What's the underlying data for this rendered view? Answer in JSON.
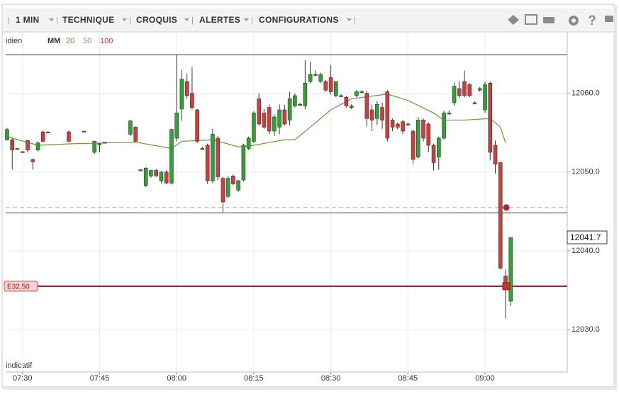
{
  "toolbar": {
    "items": [
      "1 MIN",
      "TECHNIQUE",
      "CROQUIS",
      "ALERTES",
      "CONFIGURATIONS"
    ]
  },
  "chart_data": {
    "type": "candlestick",
    "period_label": "idien",
    "indicator_legend": {
      "label": "MM",
      "periods": [
        {
          "label": "20",
          "color": "#4e9a2e"
        },
        {
          "label": "50",
          "color": "#8a8a6a"
        },
        {
          "label": "100",
          "color": "#c0392b"
        }
      ]
    },
    "footer_label": "indicatif",
    "up_color": "#35a035",
    "down_color": "#c94040",
    "x": [
      "07:27",
      "07:28",
      "07:29",
      "07:30",
      "07:31",
      "07:32",
      "07:33",
      "07:34",
      "07:35",
      "07:39",
      "07:42",
      "07:44",
      "07:45",
      "07:46",
      "07:51",
      "07:52",
      "07:53",
      "07:54",
      "07:55",
      "07:56",
      "07:57",
      "07:58",
      "07:59",
      "08:00",
      "08:01",
      "08:02",
      "08:03",
      "08:04",
      "08:05",
      "08:06",
      "08:07",
      "08:08",
      "08:09",
      "08:10",
      "08:11",
      "08:12",
      "08:13",
      "08:14",
      "08:15",
      "08:16",
      "08:17",
      "08:18",
      "08:19",
      "08:20",
      "08:21",
      "08:22",
      "08:23",
      "08:24",
      "08:25",
      "08:26",
      "08:27",
      "08:28",
      "08:29",
      "08:30",
      "08:31",
      "08:32",
      "08:33",
      "08:34",
      "08:35",
      "08:36",
      "08:37",
      "08:38",
      "08:39",
      "08:40",
      "08:41",
      "08:42",
      "08:43",
      "08:44",
      "08:45",
      "08:46",
      "08:47",
      "08:48",
      "08:49",
      "08:50",
      "08:51",
      "08:52",
      "08:53",
      "08:54",
      "08:55",
      "08:56",
      "08:57",
      "08:58",
      "08:59",
      "09:00",
      "09:01",
      "09:02",
      "09:03",
      "09:04",
      "09:05"
    ],
    "open": [
      12054.1,
      12054.1,
      12053.0,
      12052.6,
      12054.0,
      12051.6,
      12052.8,
      12055.1,
      12055.1,
      12055.1,
      12055.2,
      12052.5,
      12053.6,
      12053.8,
      12054.8,
      12055.7,
      12050.3,
      12048.3,
      12049.5,
      12050.2,
      12048.9,
      12050.0,
      12048.6,
      12054.3,
      12058.0,
      12061.5,
      12060.0,
      12057.9,
      12053.0,
      12053.4,
      12048.9,
      12054.3,
      12049.2,
      12046.9,
      12049.5,
      12047.7,
      12049.0,
      12053.0,
      12053.9,
      12059.3,
      12057.5,
      12058.2,
      12055.2,
      12055.7,
      12057.9,
      12056.6,
      12058.4,
      12058.6,
      12058.4,
      12061.5,
      12062.4,
      12061.5,
      12061.5,
      12062.0,
      12059.7,
      12059.7,
      12059.5,
      12058.4,
      12059.7,
      12060.2,
      12060.0,
      12057.9,
      12056.8,
      12058.2,
      12060.2,
      12056.6,
      12056.1,
      12056.4,
      12056.1,
      12055.2,
      12051.9,
      12056.6,
      12056.1,
      12053.4,
      12051.9,
      12054.3,
      12057.5,
      12058.8,
      12060.6,
      12061.5,
      12061.1,
      12058.8,
      12060.4,
      12057.9,
      12061.3,
      12053.4,
      12051.2,
      12036.8,
      12033.6
    ],
    "high": [
      12055.6,
      12054.3,
      12053.0,
      12052.6,
      12054.1,
      12051.7,
      12053.9,
      12055.3,
      12055.1,
      12055.3,
      12055.2,
      12054.0,
      12053.6,
      12053.8,
      12056.6,
      12055.8,
      12050.3,
      12050.6,
      12050.3,
      12050.4,
      12050.1,
      12050.2,
      12055.5,
      12064.9,
      12063.0,
      12062.5,
      12063.3,
      12058.0,
      12053.2,
      12053.6,
      12055.5,
      12054.6,
      12049.4,
      12049.5,
      12049.7,
      12049.0,
      12053.6,
      12054.5,
      12057.7,
      12060.0,
      12058.0,
      12058.6,
      12057.3,
      12058.6,
      12058.5,
      12060.2,
      12060.0,
      12058.8,
      12064.2,
      12064.0,
      12062.9,
      12062.6,
      12061.7,
      12063.6,
      12061.5,
      12059.9,
      12059.7,
      12058.6,
      12060.4,
      12060.4,
      12060.3,
      12058.6,
      12059.0,
      12058.8,
      12060.4,
      12056.8,
      12056.3,
      12056.6,
      12056.3,
      12055.4,
      12057.0,
      12056.8,
      12056.3,
      12053.6,
      12054.5,
      12057.8,
      12057.8,
      12061.3,
      12061.5,
      12062.9,
      12061.3,
      12059.0,
      12060.8,
      12061.5,
      12061.5,
      12054.0,
      12051.3,
      12037.6,
      12041.7
    ],
    "low": [
      12054.0,
      12050.3,
      12053.0,
      12052.5,
      12052.5,
      12050.3,
      12052.6,
      12053.8,
      12055.1,
      12053.8,
      12055.2,
      12052.3,
      12052.5,
      12053.8,
      12054.6,
      12053.8,
      12050.1,
      12048.1,
      12049.3,
      12049.4,
      12048.6,
      12048.5,
      12048.4,
      12053.9,
      12056.5,
      12059.3,
      12057.9,
      12053.7,
      12052.8,
      12048.5,
      12048.6,
      12049.0,
      12044.9,
      12046.7,
      12048.3,
      12047.5,
      12048.8,
      12052.8,
      12053.7,
      12055.9,
      12055.5,
      12054.8,
      12054.6,
      12054.8,
      12055.9,
      12055.9,
      12058.2,
      12058.4,
      12058.0,
      12061.3,
      12062.2,
      12061.3,
      12060.2,
      12059.8,
      12059.5,
      12059.5,
      12058.2,
      12058.0,
      12059.5,
      12060.0,
      12055.8,
      12055.2,
      12056.0,
      12055.5,
      12053.9,
      12055.2,
      12055.4,
      12054.8,
      12055.9,
      12051.0,
      12051.7,
      12053.9,
      12052.5,
      12050.2,
      12050.3,
      12054.1,
      12057.3,
      12058.4,
      12059.4,
      12059.5,
      12059.5,
      12058.6,
      12060.2,
      12057.5,
      12051.5,
      12049.8,
      12037.6,
      12031.4,
      12033.0
    ],
    "close": [
      12055.4,
      12052.8,
      12053.0,
      12052.5,
      12052.8,
      12051.3,
      12053.7,
      12053.9,
      12055.1,
      12053.9,
      12055.2,
      12053.9,
      12053.5,
      12053.8,
      12056.5,
      12053.9,
      12050.2,
      12050.5,
      12050.2,
      12049.5,
      12050.0,
      12048.6,
      12055.4,
      12057.5,
      12061.8,
      12059.7,
      12058.2,
      12053.9,
      12053.0,
      12048.9,
      12054.8,
      12049.4,
      12046.2,
      12049.2,
      12048.5,
      12048.9,
      12053.4,
      12054.3,
      12057.5,
      12056.1,
      12055.7,
      12055.2,
      12057.0,
      12057.9,
      12056.1,
      12059.3,
      12059.7,
      12058.6,
      12061.3,
      12062.4,
      12062.4,
      12062.4,
      12060.4,
      12060.2,
      12061.5,
      12059.7,
      12058.4,
      12058.2,
      12060.2,
      12060.2,
      12056.8,
      12056.6,
      12058.6,
      12056.6,
      12054.3,
      12055.7,
      12055.7,
      12055.2,
      12056.1,
      12051.6,
      12056.6,
      12054.3,
      12053.4,
      12051.2,
      12054.3,
      12057.5,
      12057.5,
      12060.9,
      12059.7,
      12059.7,
      12059.7,
      12058.8,
      12060.6,
      12061.1,
      12052.5,
      12051.0,
      12037.8,
      12035.1,
      12041.7
    ],
    "moving_average": {
      "name": "20",
      "color": "#5aa032",
      "x": [
        "07:27",
        "07:33",
        "07:40",
        "07:52",
        "07:59",
        "08:01",
        "08:07",
        "08:12",
        "08:15",
        "08:21",
        "08:23",
        "08:26",
        "08:30",
        "08:34",
        "08:41",
        "08:45",
        "08:50",
        "08:52",
        "08:56",
        "09:01",
        "09:03",
        "09:04"
      ],
      "values": [
        12054.5,
        12053.4,
        12053.6,
        12053.8,
        12053.0,
        12053.9,
        12054.1,
        12053.2,
        12053.4,
        12054.1,
        12054.1,
        12055.7,
        12057.9,
        12059.3,
        12059.9,
        12059.1,
        12057.5,
        12056.6,
        12056.6,
        12056.8,
        12055.7,
        12053.7
      ]
    },
    "lines": [
      {
        "value": 12064.9,
        "color": "#333333",
        "style": "solid"
      },
      {
        "value": 12044.8,
        "color": "#333333",
        "style": "solid"
      },
      {
        "value": 12045.5,
        "color": "#d4a0a8",
        "style": "dashed"
      },
      {
        "value": 12035.5,
        "color": "#8b1a1a",
        "style": "solid",
        "label": "E32,50"
      }
    ],
    "last_price": {
      "value": 12041.7,
      "label": "12041.7"
    },
    "xlim": [
      "07:27",
      "09:16"
    ],
    "xticks": [
      "07:30",
      "07:45",
      "08:00",
      "08:15",
      "08:30",
      "08:45",
      "09:00"
    ],
    "ylim": [
      12024.6,
      12067.8
    ],
    "yticks": [
      {
        "value": 12030,
        "label": "12030.0"
      },
      {
        "value": 12040,
        "label": "12040.0"
      },
      {
        "value": 12050,
        "label": "12050.0"
      },
      {
        "value": 12060,
        "label": "12060.0"
      }
    ],
    "grid": true
  }
}
